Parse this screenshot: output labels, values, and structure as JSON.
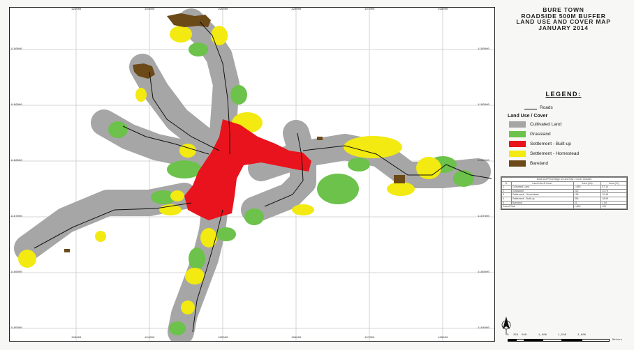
{
  "map": {
    "title_lines": [
      "BURE TOWN",
      "ROADSIDE 500M BUFFER",
      "LAND USE AND COVER MAP",
      "JANUARY 2014"
    ],
    "legend": {
      "title": "LEGEND:",
      "roads_label": "Roads",
      "group_title": "Land Use / Cover",
      "classes": [
        {
          "label": "Cultivated Land",
          "color": "#a6a6a6"
        },
        {
          "label": "Grassland",
          "color": "#6cc24a"
        },
        {
          "label": "Settlement - Built-up",
          "color": "#e8131c"
        },
        {
          "label": "Settlement - Homestead",
          "color": "#f2ea10"
        },
        {
          "label": "Bareland",
          "color": "#6b4a18"
        }
      ]
    },
    "stats_table": {
      "title": "Area and Percentage of Land Use / Cover Classes",
      "headers": [
        "S.",
        "Land Use & Cover",
        "Area (Ha)",
        "Area (%)"
      ],
      "rows": [
        [
          "1",
          "Cultivated Land",
          "1,080",
          "57.14"
        ],
        [
          "2",
          "Grassland",
          "222",
          "11.75"
        ],
        [
          "3",
          "Settlement - Homestead",
          "198",
          "10.48"
        ],
        [
          "4",
          "Settlement - Built-up",
          "359",
          "18.99"
        ],
        [
          "5",
          "Bareland",
          "31",
          "1.64"
        ]
      ],
      "total_label": "Grand Total",
      "total_area": "1,890",
      "total_pct": "100"
    },
    "x_ticks": [
      "193000",
      "194000",
      "195000",
      "196000",
      "197000",
      "198000"
    ],
    "y_ticks": [
      "1190000",
      "1189000",
      "1188000",
      "1187000",
      "1186000",
      "1185000",
      "1184000"
    ],
    "scale_labels": [
      "0",
      "250",
      "500",
      "1,000",
      "1,500",
      "2,000",
      "Meters"
    ]
  }
}
